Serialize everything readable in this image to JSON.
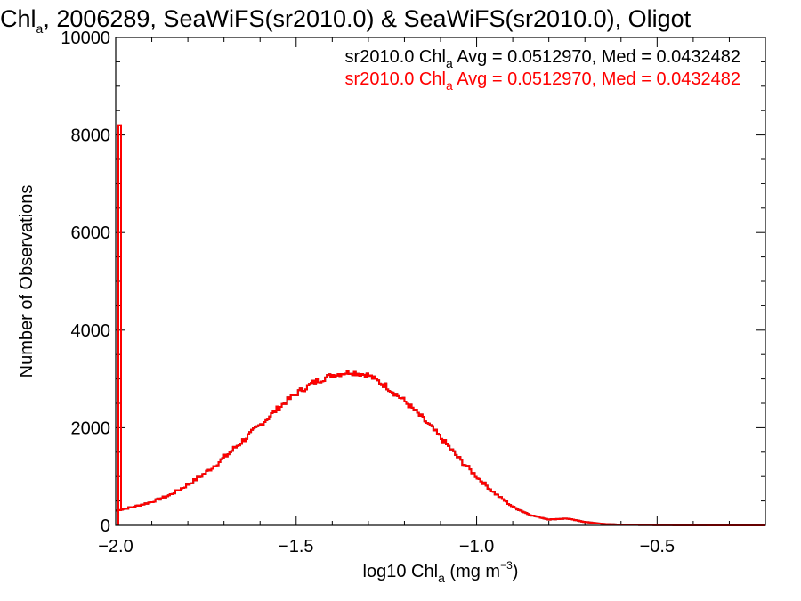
{
  "chart_data": {
    "type": "line",
    "title": {
      "prefix": "Chl",
      "subscript": "a",
      "rest": ", 2006289, SeaWiFS(sr2010.0) & SeaWiFS(sr2010.0), Oligot"
    },
    "xlabel": {
      "prefix": "log10 Chl",
      "subscript": "a",
      "middle": " (mg m",
      "superscript": "−3",
      "suffix": ")"
    },
    "ylabel": "Number of Observations",
    "xlim": [
      -2.0,
      -0.2
    ],
    "ylim": [
      0,
      10000
    ],
    "x_ticks": [
      -2.0,
      -1.5,
      -1.0,
      -0.5
    ],
    "x_tick_labels": [
      "−2.0",
      "−1.5",
      "−1.0",
      "−0.5"
    ],
    "y_ticks": [
      0,
      2000,
      4000,
      6000,
      8000,
      10000
    ],
    "y_tick_labels": [
      "0",
      "2000",
      "4000",
      "6000",
      "8000",
      "10000"
    ],
    "grid": false,
    "legend_position": "top-right",
    "legend": [
      {
        "prefix": "sr2010.0 Chl",
        "subscript": "a",
        "stats": " Avg = 0.0512970, Med = 0.0432482",
        "color": "#000000"
      },
      {
        "prefix": "sr2010.0 Chl",
        "subscript": "a",
        "stats": " Avg = 0.0512970, Med = 0.0432482",
        "color": "#ff0000"
      }
    ],
    "series": [
      {
        "color": "#000000",
        "x": [
          -2.0,
          -1.95,
          -1.9,
          -1.85,
          -1.8,
          -1.75,
          -1.7,
          -1.65,
          -1.6,
          -1.55,
          -1.5,
          -1.45,
          -1.4,
          -1.35,
          -1.3,
          -1.25,
          -1.2,
          -1.15,
          -1.1,
          -1.05,
          -1.0,
          -0.95,
          -0.9,
          -0.85,
          -0.8,
          -0.75,
          -0.7,
          -0.65,
          -0.6,
          -0.55,
          -0.5,
          -0.45,
          -0.4,
          -0.35,
          -0.3,
          -0.25,
          -0.2
        ],
        "y": [
          300,
          380,
          480,
          620,
          830,
          1080,
          1380,
          1720,
          2050,
          2400,
          2700,
          2930,
          3080,
          3150,
          3080,
          2850,
          2550,
          2200,
          1800,
          1380,
          1000,
          660,
          380,
          210,
          120,
          140,
          70,
          30,
          15,
          8,
          5,
          3,
          2,
          1,
          1,
          0,
          0
        ]
      },
      {
        "color": "#ff0000",
        "x": [
          -2.0,
          -1.95,
          -1.9,
          -1.85,
          -1.8,
          -1.75,
          -1.7,
          -1.65,
          -1.6,
          -1.55,
          -1.5,
          -1.45,
          -1.4,
          -1.35,
          -1.3,
          -1.25,
          -1.2,
          -1.15,
          -1.1,
          -1.05,
          -1.0,
          -0.95,
          -0.9,
          -0.85,
          -0.8,
          -0.75,
          -0.7,
          -0.65,
          -0.6,
          -0.55,
          -0.5,
          -0.45,
          -0.4,
          -0.35,
          -0.3,
          -0.25,
          -0.2
        ],
        "y": [
          300,
          380,
          480,
          620,
          830,
          1080,
          1380,
          1720,
          2050,
          2400,
          2700,
          2930,
          3080,
          3150,
          3080,
          2850,
          2550,
          2200,
          1800,
          1380,
          1000,
          660,
          380,
          210,
          120,
          140,
          70,
          30,
          15,
          8,
          5,
          3,
          2,
          1,
          1,
          0,
          0
        ]
      }
    ],
    "spike": {
      "x": -2.0,
      "y": 8200
    }
  }
}
